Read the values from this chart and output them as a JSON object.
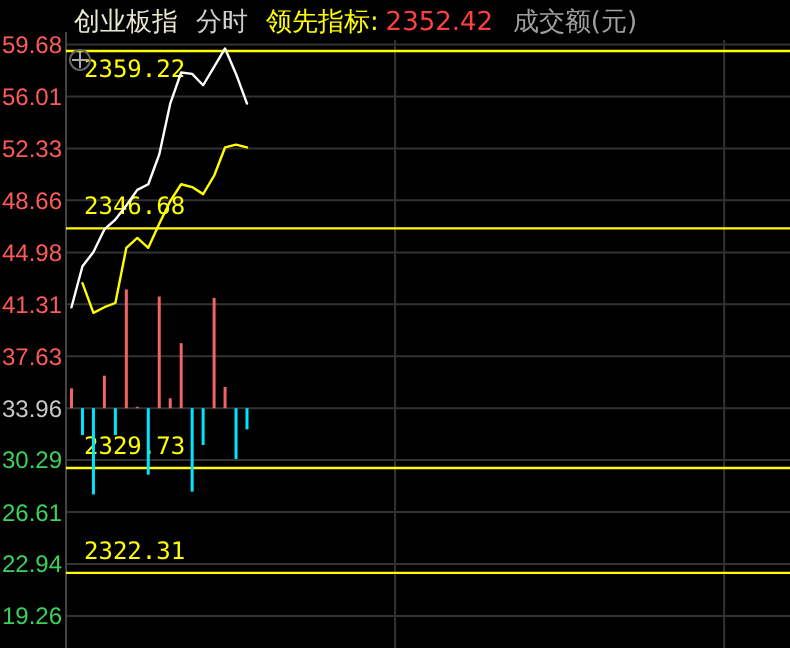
{
  "chart_data": {
    "type": "line",
    "title": "创业板指",
    "subtitle": "分时",
    "annotations": [
      "领先指标:",
      "2352.42",
      "成交额(元)"
    ],
    "categories": [
      null,
      null,
      null,
      null,
      null,
      null,
      null,
      null,
      null,
      null,
      null,
      null,
      null,
      null,
      null,
      null,
      null,
      null,
      null,
      null,
      null,
      null,
      null,
      null,
      null,
      null,
      null,
      null,
      null,
      null,
      null,
      null,
      null,
      null,
      null,
      null,
      null,
      null,
      null,
      null,
      null,
      null,
      null,
      null,
      null,
      null,
      null,
      null,
      null,
      null,
      null,
      null,
      null,
      null,
      null,
      null,
      null,
      null,
      null,
      null,
      null,
      null,
      null,
      null,
      null,
      null
    ],
    "ylim": [
      17,
      60
    ],
    "yticks": [
      59.68,
      56.01,
      52.33,
      48.66,
      44.98,
      41.31,
      37.63,
      33.96,
      30.29,
      26.61,
      22.94,
      19.26
    ],
    "y2lim": [
      2317,
      2360
    ],
    "tick_labels": "y",
    "grid": true,
    "series": [
      {
        "type": "bar",
        "values": [
          1.4,
          -1.9,
          -6.1,
          2.3,
          -1.9,
          8.4,
          0.1,
          -4.7,
          7.9,
          0.7,
          4.6,
          -5.9,
          -2.6,
          7.8,
          1.5,
          -3.6,
          -1.5,
          null,
          null,
          null,
          null,
          null,
          null,
          null,
          null,
          null,
          null,
          null,
          null,
          null,
          null,
          null,
          null,
          null,
          null,
          null,
          null,
          null,
          null,
          null,
          null,
          null,
          null,
          null,
          null,
          null,
          null,
          null,
          null,
          null,
          null,
          null,
          null,
          null,
          null,
          null,
          null,
          null,
          null,
          null,
          null,
          null,
          null,
          null,
          null,
          null
        ],
        "base": [
          33.96,
          33.96,
          33.96,
          33.96,
          33.96,
          33.96,
          33.96,
          33.96,
          33.96,
          33.96,
          33.96,
          33.96,
          33.96,
          33.96,
          33.96,
          33.96,
          33.96,
          null,
          null,
          null,
          null,
          null,
          null,
          null,
          null,
          null,
          null,
          null,
          null,
          null,
          null,
          null,
          null,
          null,
          null,
          null,
          null,
          null,
          null,
          null,
          null,
          null,
          null,
          null,
          null,
          null,
          null,
          null,
          null,
          null,
          null,
          null,
          null,
          null,
          null,
          null,
          null,
          null,
          null,
          null,
          null,
          null,
          null,
          null,
          null,
          null
        ],
        "colors": [
          "#f06464",
          "#00e5ff",
          "#00e5ff",
          "#f06464",
          "#00e5ff",
          "#f06464",
          "#f06464",
          "#00e5ff",
          "#f06464",
          "#f06464",
          "#f06464",
          "#00e5ff",
          "#00e5ff",
          "#f06464",
          "#f06464",
          "#00e5ff",
          "#00e5ff",
          null,
          null,
          null,
          null,
          null,
          null,
          null,
          null,
          null,
          null,
          null,
          null,
          null,
          null,
          null,
          null,
          null,
          null,
          null,
          null,
          null,
          null,
          null,
          null,
          null,
          null,
          null,
          null,
          null,
          null,
          null,
          null,
          null,
          null,
          null,
          null,
          null,
          null,
          null,
          null,
          null,
          null,
          null,
          null,
          null,
          null,
          null,
          null,
          null
        ]
      },
      {
        "color": "#ffffff",
        "values": [
          41.1,
          44.0,
          45.0,
          46.6,
          47.3,
          48.3,
          49.4,
          49.8,
          51.9,
          55.5,
          57.7,
          57.6,
          56.8,
          58.1,
          59.4,
          57.6,
          55.5,
          null,
          null,
          null,
          null,
          null,
          null,
          null,
          null,
          null,
          null,
          null,
          null,
          null,
          null,
          null,
          null,
          null,
          null,
          null,
          null,
          null,
          null,
          null,
          null,
          null,
          null,
          null,
          null,
          null,
          null,
          null,
          null,
          null,
          null,
          null,
          null,
          null,
          null,
          null,
          null,
          null,
          null,
          null,
          null,
          null,
          null,
          null,
          null,
          null
        ]
      },
      {
        "color": "#ffff00",
        "values": [
          null,
          42.8,
          40.7,
          41.1,
          41.4,
          45.3,
          46.0,
          45.3,
          47.0,
          48.6,
          49.8,
          49.6,
          49.1,
          50.4,
          52.4,
          52.6,
          52.4,
          null,
          null,
          null,
          null,
          null,
          null,
          null,
          null,
          null,
          null,
          null,
          null,
          null,
          null,
          null,
          null,
          null,
          null,
          null,
          null,
          null,
          null,
          null,
          null,
          null,
          null,
          null,
          null,
          null,
          null,
          null,
          null,
          null,
          null,
          null,
          null,
          null,
          null,
          null,
          null,
          null,
          null,
          null,
          null,
          null,
          null,
          null,
          null,
          null
        ]
      }
    ],
    "ref_lines": [
      {
        "axis": "y2",
        "value": 2359.22,
        "label": "2359.22",
        "color": "#ffff00"
      },
      {
        "axis": "y2",
        "value": 2346.68,
        "label": "2346.68",
        "color": "#ffff00"
      },
      {
        "axis": "y2",
        "value": 2329.73,
        "label": "2329.73",
        "color": "#ffff00"
      },
      {
        "axis": "y2",
        "value": 2322.31,
        "label": "2322.31",
        "color": "#ffff00"
      }
    ]
  }
}
